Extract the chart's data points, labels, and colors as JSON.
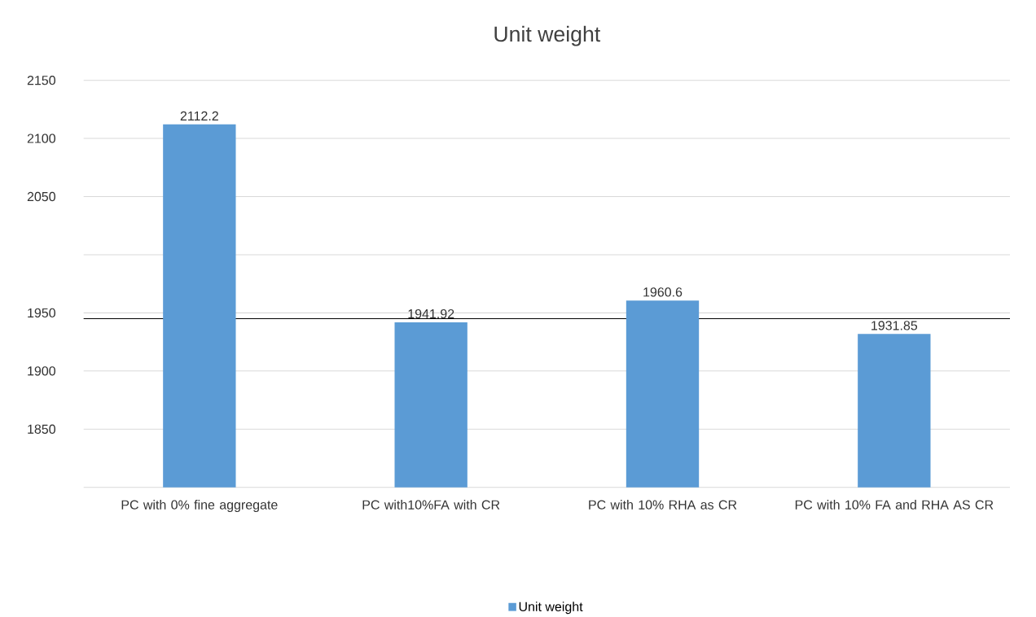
{
  "chart_data": {
    "type": "bar",
    "title": "Unit weight",
    "categories": [
      "PC with 0% fine aggregate",
      "PC with10%FA  with CR",
      "PC with 10% RHA as CR",
      "PC with 10% FA and RHA AS CR"
    ],
    "series": [
      {
        "name": "Unit weight",
        "color": "#5b9bd5",
        "values": [
          2112.2,
          1941.92,
          1960.6,
          1931.85
        ]
      }
    ],
    "ylim": [
      1800,
      2150
    ],
    "yticks": [
      {
        "value": 1800,
        "label": null
      },
      1850,
      1900,
      1950,
      {
        "value": 2000,
        "label": null
      },
      2050,
      2100,
      2150
    ],
    "ref_lines": [
      {
        "axis": "y",
        "value": 1945,
        "color": "#000000"
      }
    ],
    "grid": "y",
    "legend": "bottom",
    "data_labels": true
  }
}
